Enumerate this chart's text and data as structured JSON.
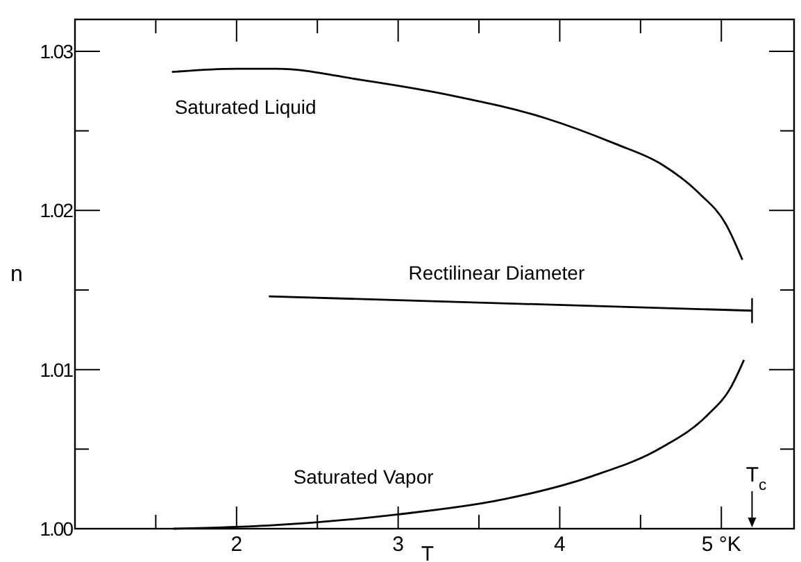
{
  "chart_data": {
    "type": "line",
    "xlabel": "T",
    "ylabel": "n",
    "xlim": [
      1,
      5.45
    ],
    "ylim": [
      1.0,
      1.032
    ],
    "xticks": [
      {
        "value": 1,
        "label": null
      },
      {
        "value": 1.5,
        "label": null
      },
      2,
      {
        "value": 2.5,
        "label": null
      },
      3,
      {
        "value": 3.5,
        "label": null
      },
      4,
      {
        "value": 4.5,
        "label": null
      },
      {
        "value": 5,
        "label": "5 °K"
      }
    ],
    "yticks": [
      {
        "value": 1.0,
        "label": "1.00"
      },
      {
        "value": 1.005,
        "label": null
      },
      {
        "value": 1.01,
        "label": "1.01"
      },
      {
        "value": 1.015,
        "label": null
      },
      {
        "value": 1.02,
        "label": "1.02"
      },
      {
        "value": 1.025,
        "label": null
      },
      {
        "value": 1.03,
        "label": "1.03"
      }
    ],
    "grid": false,
    "marker": "none",
    "line_style": "solid",
    "series": [
      {
        "name": "Saturated Liquid",
        "color": "#000000",
        "x": [
          1.6,
          2.0,
          2.25,
          2.77,
          3.34,
          3.91,
          4.34,
          4.63,
          4.86,
          5.03,
          5.13
        ],
        "values": [
          1.0287,
          1.0289,
          1.0289,
          1.0282,
          1.0272,
          1.0258,
          1.0242,
          1.0229,
          1.0211,
          1.0191,
          1.0169
        ]
      },
      {
        "name": "Rectilinear Diameter",
        "color": "#000000",
        "x": [
          2.2,
          5.19
        ],
        "values": [
          1.0146,
          1.0137
        ]
      },
      {
        "name": "Saturated Vapor",
        "color": "#000000",
        "x": [
          1.61,
          2.2,
          3.0,
          3.63,
          4.2,
          4.63,
          4.91,
          5.06,
          5.14
        ],
        "values": [
          1.0,
          1.0002,
          1.0009,
          1.0018,
          1.0033,
          1.0051,
          1.0071,
          1.0089,
          1.0106
        ]
      }
    ],
    "ref_lines": [
      {
        "axis": "x",
        "value": 5.19,
        "label": "T$_{c}$"
      }
    ]
  }
}
